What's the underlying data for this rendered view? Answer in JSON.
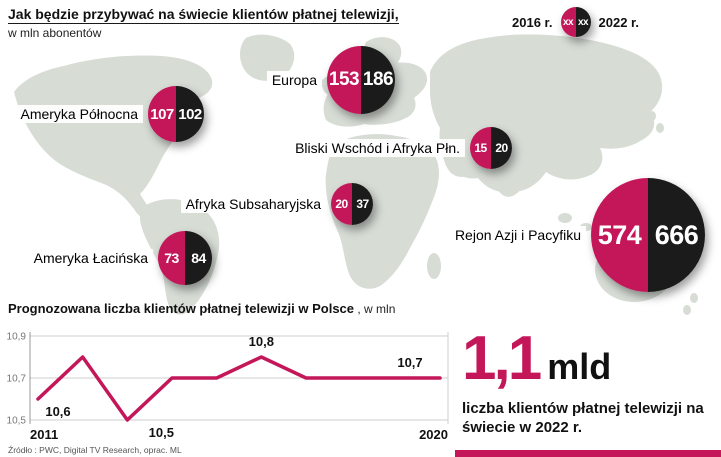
{
  "header": {
    "title": "Jak będzie przybywać na świecie klientów płatnej telewizji,",
    "subtitle": "w mln abonentów"
  },
  "legend": {
    "year_left": "2016 r.",
    "year_right": "2022 r.",
    "sample_left": "xx",
    "sample_right": "xx"
  },
  "regions": [
    {
      "name": "Ameryka Północna",
      "v2016": "107",
      "v2022": "102"
    },
    {
      "name": "Europa",
      "v2016": "153",
      "v2022": "186"
    },
    {
      "name": "Bliski Wschód i Afryka Płn.",
      "v2016": "15",
      "v2022": "20"
    },
    {
      "name": "Afryka Subsaharyjska",
      "v2016": "20",
      "v2022": "37"
    },
    {
      "name": "Ameryka Łacińska",
      "v2016": "73",
      "v2022": "84"
    },
    {
      "name": "Rejon Azji i Pacyfiku",
      "v2016": "574",
      "v2022": "666"
    }
  ],
  "chart_data": [
    {
      "type": "table",
      "title": "Jak będzie przybywać na świecie klientów płatnej telewizji, w mln abonentów",
      "categories": [
        "Ameryka Północna",
        "Europa",
        "Bliski Wschód i Afryka Płn.",
        "Afryka Subsaharyjska",
        "Ameryka Łacińska",
        "Rejon Azji i Pacyfiku"
      ],
      "series": [
        {
          "name": "2016 r.",
          "values": [
            107,
            153,
            15,
            20,
            73,
            574
          ]
        },
        {
          "name": "2022 r.",
          "values": [
            102,
            186,
            20,
            37,
            84,
            666
          ]
        }
      ]
    },
    {
      "type": "line",
      "title": "Prognozowana liczba klientów płatnej telewizji w Polsce",
      "title_suffix": " , w mln",
      "x": [
        2011,
        2012,
        2013,
        2014,
        2015,
        2016,
        2017,
        2018,
        2019,
        2020
      ],
      "values": [
        10.6,
        10.8,
        10.5,
        10.7,
        10.7,
        10.8,
        10.7,
        10.7,
        10.7,
        10.7
      ],
      "ylim": [
        10.5,
        10.9
      ],
      "yticks": [
        {
          "value": 10.9,
          "label": "10,9"
        },
        {
          "value": 10.7,
          "label": "10,7"
        },
        {
          "value": 10.5,
          "label": "10,5"
        }
      ],
      "x_labels": [
        "2011",
        "2020"
      ],
      "annotations": [
        {
          "x": 2011,
          "label": "10,6",
          "pos": "below",
          "dx": 20
        },
        {
          "x": 2013,
          "label": "10,5",
          "pos": "below",
          "dx": 34
        },
        {
          "x": 2016,
          "label": "10,8",
          "pos": "above",
          "dx": 0
        },
        {
          "x": 2020,
          "label": "10,7",
          "pos": "above",
          "dx": -30
        }
      ],
      "line_color": "#c4175a",
      "grid": true,
      "legend_position": "none"
    }
  ],
  "highlight": {
    "value": "1,1",
    "unit": "mld",
    "caption": "liczba klientów płatnej telewizji na świecie w 2022 r."
  },
  "footer": {
    "source": "Źródło : PWC, Digital TV Research, oprac. ML"
  },
  "colors": {
    "accent": "#c4175a",
    "dark": "#1b1b1b",
    "map": "#d7dcd5"
  }
}
